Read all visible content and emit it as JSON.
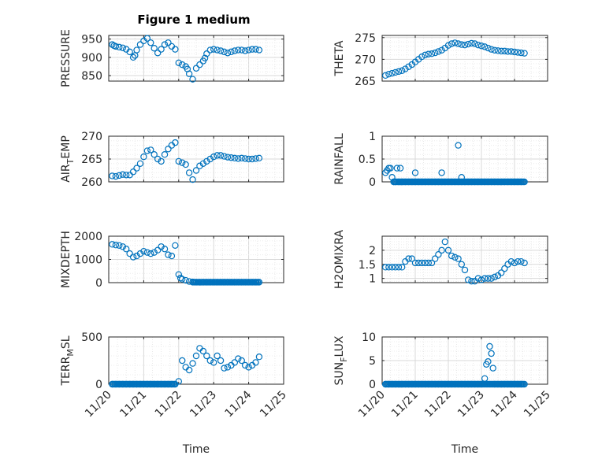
{
  "figure": {
    "title": "Figure 1 medium",
    "marker_color": "#0072BD",
    "x_tick_labels": [
      "11/20",
      "11/21",
      "11/22",
      "11/23",
      "11/24",
      "11/25"
    ],
    "x_label": "Time"
  },
  "chart_data": [
    {
      "type": "scatter",
      "ylabel": "PRESSURE",
      "xlim": [
        0,
        5
      ],
      "ylim": [
        835,
        960
      ],
      "yticks": [
        850,
        900,
        950
      ],
      "grid": true,
      "x": [
        0.1,
        0.15,
        0.2,
        0.3,
        0.4,
        0.5,
        0.6,
        0.7,
        0.75,
        0.8,
        0.9,
        1.0,
        1.1,
        1.2,
        1.3,
        1.4,
        1.5,
        1.6,
        1.7,
        1.8,
        1.9,
        2.0,
        2.1,
        2.2,
        2.25,
        2.3,
        2.4,
        2.5,
        2.6,
        2.7,
        2.75,
        2.8,
        2.9,
        3.0,
        3.1,
        3.2,
        3.3,
        3.4,
        3.5,
        3.6,
        3.7,
        3.8,
        3.9,
        4.0,
        4.1,
        4.2,
        4.3
      ],
      "y": [
        935,
        932,
        930,
        928,
        926,
        922,
        915,
        900,
        905,
        920,
        935,
        945,
        952,
        940,
        925,
        912,
        922,
        935,
        940,
        930,
        922,
        885,
        880,
        875,
        868,
        855,
        840,
        870,
        880,
        890,
        898,
        910,
        920,
        922,
        920,
        918,
        915,
        912,
        915,
        918,
        920,
        920,
        918,
        920,
        922,
        922,
        920
      ]
    },
    {
      "type": "scatter",
      "ylabel": "THETA",
      "xlim": [
        0,
        5
      ],
      "ylim": [
        265,
        275.5
      ],
      "yticks": [
        265,
        270,
        275
      ],
      "grid": true,
      "x": [
        0.1,
        0.2,
        0.3,
        0.4,
        0.5,
        0.6,
        0.7,
        0.8,
        0.9,
        1.0,
        1.1,
        1.2,
        1.3,
        1.4,
        1.5,
        1.6,
        1.7,
        1.8,
        1.9,
        2.0,
        2.1,
        2.2,
        2.3,
        2.4,
        2.5,
        2.6,
        2.7,
        2.8,
        2.9,
        3.0,
        3.1,
        3.2,
        3.3,
        3.4,
        3.5,
        3.6,
        3.7,
        3.8,
        3.9,
        4.0,
        4.1,
        4.2,
        4.3
      ],
      "y": [
        266.3,
        266.6,
        266.8,
        267.0,
        267.2,
        267.4,
        267.8,
        268.3,
        268.8,
        269.4,
        270.0,
        270.6,
        271.0,
        271.2,
        271.3,
        271.5,
        271.8,
        272.1,
        272.6,
        273.2,
        273.6,
        273.8,
        273.6,
        273.4,
        273.3,
        273.5,
        273.7,
        273.6,
        273.3,
        273.1,
        272.9,
        272.6,
        272.3,
        272.1,
        272.0,
        271.9,
        271.9,
        271.8,
        271.8,
        271.7,
        271.6,
        271.5,
        271.4
      ]
    },
    {
      "type": "scatter",
      "ylabel": "AIR_TEMP",
      "xlim": [
        0,
        5
      ],
      "ylim": [
        260,
        270
      ],
      "yticks": [
        260,
        265,
        270
      ],
      "grid": true,
      "x": [
        0.1,
        0.2,
        0.3,
        0.4,
        0.5,
        0.6,
        0.7,
        0.8,
        0.9,
        1.0,
        1.1,
        1.2,
        1.3,
        1.4,
        1.5,
        1.6,
        1.7,
        1.8,
        1.9,
        2.0,
        2.1,
        2.2,
        2.3,
        2.4,
        2.5,
        2.6,
        2.7,
        2.8,
        2.9,
        3.0,
        3.1,
        3.2,
        3.3,
        3.4,
        3.5,
        3.6,
        3.7,
        3.8,
        3.9,
        4.0,
        4.1,
        4.2,
        4.3
      ],
      "y": [
        261.3,
        261.2,
        261.4,
        261.6,
        261.5,
        261.5,
        262.2,
        263.0,
        264.0,
        265.5,
        266.8,
        267.0,
        266.0,
        265.0,
        264.5,
        266.0,
        267.2,
        268.0,
        268.6,
        264.5,
        264.2,
        263.8,
        262.0,
        260.5,
        262.5,
        263.5,
        264.0,
        264.5,
        265.0,
        265.5,
        265.8,
        265.8,
        265.6,
        265.4,
        265.3,
        265.2,
        265.1,
        265.2,
        265.1,
        265.0,
        265.0,
        265.1,
        265.2
      ]
    },
    {
      "type": "scatter",
      "ylabel": "RAINFALL",
      "xlim": [
        0,
        5
      ],
      "ylim": [
        0,
        1
      ],
      "yticks": [
        0,
        0.5,
        1
      ],
      "grid": true,
      "x": [
        0.1,
        0.15,
        0.2,
        0.25,
        0.3,
        0.35,
        0.4,
        0.5,
        0.6,
        0.7,
        0.8,
        0.9,
        1.0,
        1.1,
        1.2,
        1.3,
        1.4,
        1.5,
        1.6,
        1.7,
        1.8,
        1.9,
        2.0,
        2.1,
        2.2,
        2.3,
        2.4,
        2.5,
        2.6,
        2.7,
        2.8,
        2.9,
        3.0,
        3.1,
        3.2,
        3.3,
        3.4,
        3.5,
        3.6,
        3.7,
        3.8,
        3.9,
        4.0,
        4.1,
        4.2,
        4.3,
        0.45,
        0.55,
        1.0,
        1.8,
        2.3,
        2.4
      ],
      "y": [
        0.2,
        0.25,
        0.3,
        0.3,
        0.1,
        0,
        0,
        0,
        0,
        0,
        0,
        0,
        0,
        0,
        0,
        0,
        0,
        0,
        0,
        0,
        0,
        0,
        0,
        0,
        0,
        0,
        0,
        0,
        0,
        0,
        0,
        0,
        0,
        0,
        0,
        0,
        0,
        0,
        0,
        0,
        0,
        0,
        0,
        0,
        0,
        0,
        0.3,
        0.3,
        0.2,
        0.2,
        0.8,
        0.1
      ]
    },
    {
      "type": "scatter",
      "ylabel": "MIXDEPTH",
      "xlim": [
        0,
        5
      ],
      "ylim": [
        0,
        2000
      ],
      "yticks": [
        0,
        1000,
        2000
      ],
      "grid": true,
      "x": [
        0.1,
        0.2,
        0.3,
        0.4,
        0.5,
        0.6,
        0.7,
        0.8,
        0.9,
        1.0,
        1.1,
        1.2,
        1.3,
        1.4,
        1.5,
        1.6,
        1.7,
        1.8,
        1.9,
        2.0,
        2.05,
        2.1,
        2.2,
        2.3,
        2.4,
        2.5,
        2.6,
        2.7,
        2.8,
        2.9,
        3.0,
        3.1,
        3.2,
        3.3,
        3.4,
        3.5,
        3.6,
        3.7,
        3.8,
        3.9,
        4.0,
        4.1,
        4.2,
        4.3
      ],
      "y": [
        1650,
        1620,
        1600,
        1550,
        1450,
        1250,
        1100,
        1150,
        1250,
        1350,
        1300,
        1250,
        1300,
        1400,
        1550,
        1450,
        1200,
        1150,
        1600,
        350,
        200,
        150,
        100,
        50,
        30,
        20,
        20,
        20,
        20,
        20,
        20,
        20,
        20,
        20,
        20,
        20,
        20,
        20,
        20,
        20,
        20,
        20,
        20,
        20
      ]
    },
    {
      "type": "scatter",
      "ylabel": "H2OMIXRA",
      "xlim": [
        0,
        5
      ],
      "ylim": [
        0.85,
        2.5
      ],
      "yticks": [
        1,
        1.5,
        2
      ],
      "grid": true,
      "x": [
        0.1,
        0.2,
        0.3,
        0.4,
        0.5,
        0.6,
        0.7,
        0.8,
        0.9,
        1.0,
        1.1,
        1.2,
        1.3,
        1.4,
        1.5,
        1.6,
        1.7,
        1.8,
        1.9,
        2.0,
        2.1,
        2.2,
        2.3,
        2.4,
        2.5,
        2.6,
        2.7,
        2.8,
        2.9,
        3.0,
        3.1,
        3.2,
        3.3,
        3.4,
        3.5,
        3.6,
        3.7,
        3.8,
        3.9,
        4.0,
        4.1,
        4.2,
        4.3
      ],
      "y": [
        1.4,
        1.4,
        1.4,
        1.4,
        1.4,
        1.4,
        1.6,
        1.7,
        1.7,
        1.55,
        1.55,
        1.55,
        1.55,
        1.55,
        1.55,
        1.7,
        1.85,
        2.0,
        2.3,
        2.0,
        1.8,
        1.75,
        1.7,
        1.5,
        1.3,
        0.95,
        0.9,
        0.9,
        1.0,
        0.95,
        1.0,
        1.0,
        1.0,
        1.05,
        1.1,
        1.2,
        1.35,
        1.5,
        1.6,
        1.55,
        1.6,
        1.6,
        1.55
      ]
    },
    {
      "type": "scatter",
      "ylabel": "TERR_MSL",
      "xlim": [
        0,
        5
      ],
      "ylim": [
        0,
        500
      ],
      "yticks": [
        0,
        500
      ],
      "grid": true,
      "x": [
        0.1,
        0.2,
        0.3,
        0.4,
        0.5,
        0.6,
        0.7,
        0.8,
        0.9,
        1.0,
        1.1,
        1.2,
        1.3,
        1.4,
        1.5,
        1.6,
        1.7,
        1.8,
        1.9,
        2.0,
        2.1,
        2.2,
        2.3,
        2.4,
        2.5,
        2.6,
        2.7,
        2.8,
        2.9,
        3.0,
        3.1,
        3.2,
        3.3,
        3.4,
        3.5,
        3.6,
        3.7,
        3.8,
        3.9,
        4.0,
        4.1,
        4.2,
        4.3
      ],
      "y": [
        0,
        0,
        0,
        0,
        0,
        0,
        0,
        0,
        0,
        0,
        0,
        0,
        0,
        0,
        0,
        0,
        0,
        0,
        0,
        30,
        250,
        180,
        150,
        220,
        300,
        380,
        350,
        300,
        250,
        230,
        300,
        250,
        170,
        180,
        200,
        230,
        270,
        250,
        200,
        180,
        200,
        230,
        290
      ]
    },
    {
      "type": "scatter",
      "ylabel": "SUN_FLUX",
      "xlim": [
        0,
        5
      ],
      "ylim": [
        0,
        10
      ],
      "yticks": [
        0,
        5,
        10
      ],
      "grid": true,
      "x": [
        0.1,
        0.2,
        0.3,
        0.4,
        0.5,
        0.6,
        0.7,
        0.8,
        0.9,
        1.0,
        1.1,
        1.2,
        1.3,
        1.4,
        1.5,
        1.6,
        1.7,
        1.8,
        1.9,
        2.0,
        2.1,
        2.2,
        2.3,
        2.4,
        2.5,
        2.6,
        2.7,
        2.8,
        2.9,
        3.0,
        3.1,
        3.15,
        3.2,
        3.25,
        3.3,
        3.35,
        3.4,
        3.5,
        3.6,
        3.7,
        3.8,
        3.9,
        4.0,
        4.1,
        4.2,
        4.3
      ],
      "y": [
        0,
        0,
        0,
        0,
        0,
        0,
        0,
        0,
        0,
        0,
        0,
        0,
        0,
        0,
        0,
        0,
        0,
        0,
        0,
        0,
        0,
        0,
        0,
        0,
        0,
        0,
        0,
        0,
        0,
        0,
        1.2,
        4.2,
        4.8,
        8.0,
        6.5,
        3.4,
        0,
        0,
        0,
        0,
        0,
        0,
        0,
        0,
        0,
        0
      ]
    }
  ]
}
